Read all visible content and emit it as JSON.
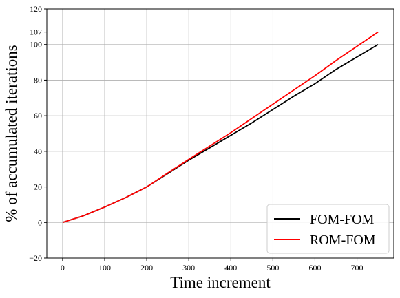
{
  "chart_data": {
    "type": "line",
    "xlabel": "Time increment",
    "ylabel": "% of accumulated iterations",
    "x": [
      0,
      50,
      100,
      150,
      200,
      250,
      300,
      350,
      400,
      450,
      500,
      550,
      600,
      650,
      700,
      750
    ],
    "series": [
      {
        "name": "FOM-FOM",
        "color": "#000000",
        "values": [
          0,
          3.8,
          8.7,
          14,
          20,
          27.5,
          35,
          42,
          49,
          56,
          63.5,
          71,
          78,
          86,
          93,
          100
        ]
      },
      {
        "name": "ROM-FOM",
        "color": "#ff0000",
        "values": [
          0,
          3.8,
          8.7,
          14,
          20,
          27.8,
          35.5,
          43,
          50.5,
          58.5,
          66.5,
          74.5,
          82.5,
          91,
          99,
          107
        ]
      }
    ],
    "xlim": [
      -37.5,
      787.5
    ],
    "ylim": [
      -20,
      120
    ],
    "xticks": [
      0,
      100,
      200,
      300,
      400,
      500,
      600,
      700
    ],
    "yticks": [
      {
        "value": -20,
        "label": "−20"
      },
      0,
      20,
      40,
      60,
      80,
      100,
      107,
      120
    ],
    "grid": true,
    "legend": "lower right"
  }
}
